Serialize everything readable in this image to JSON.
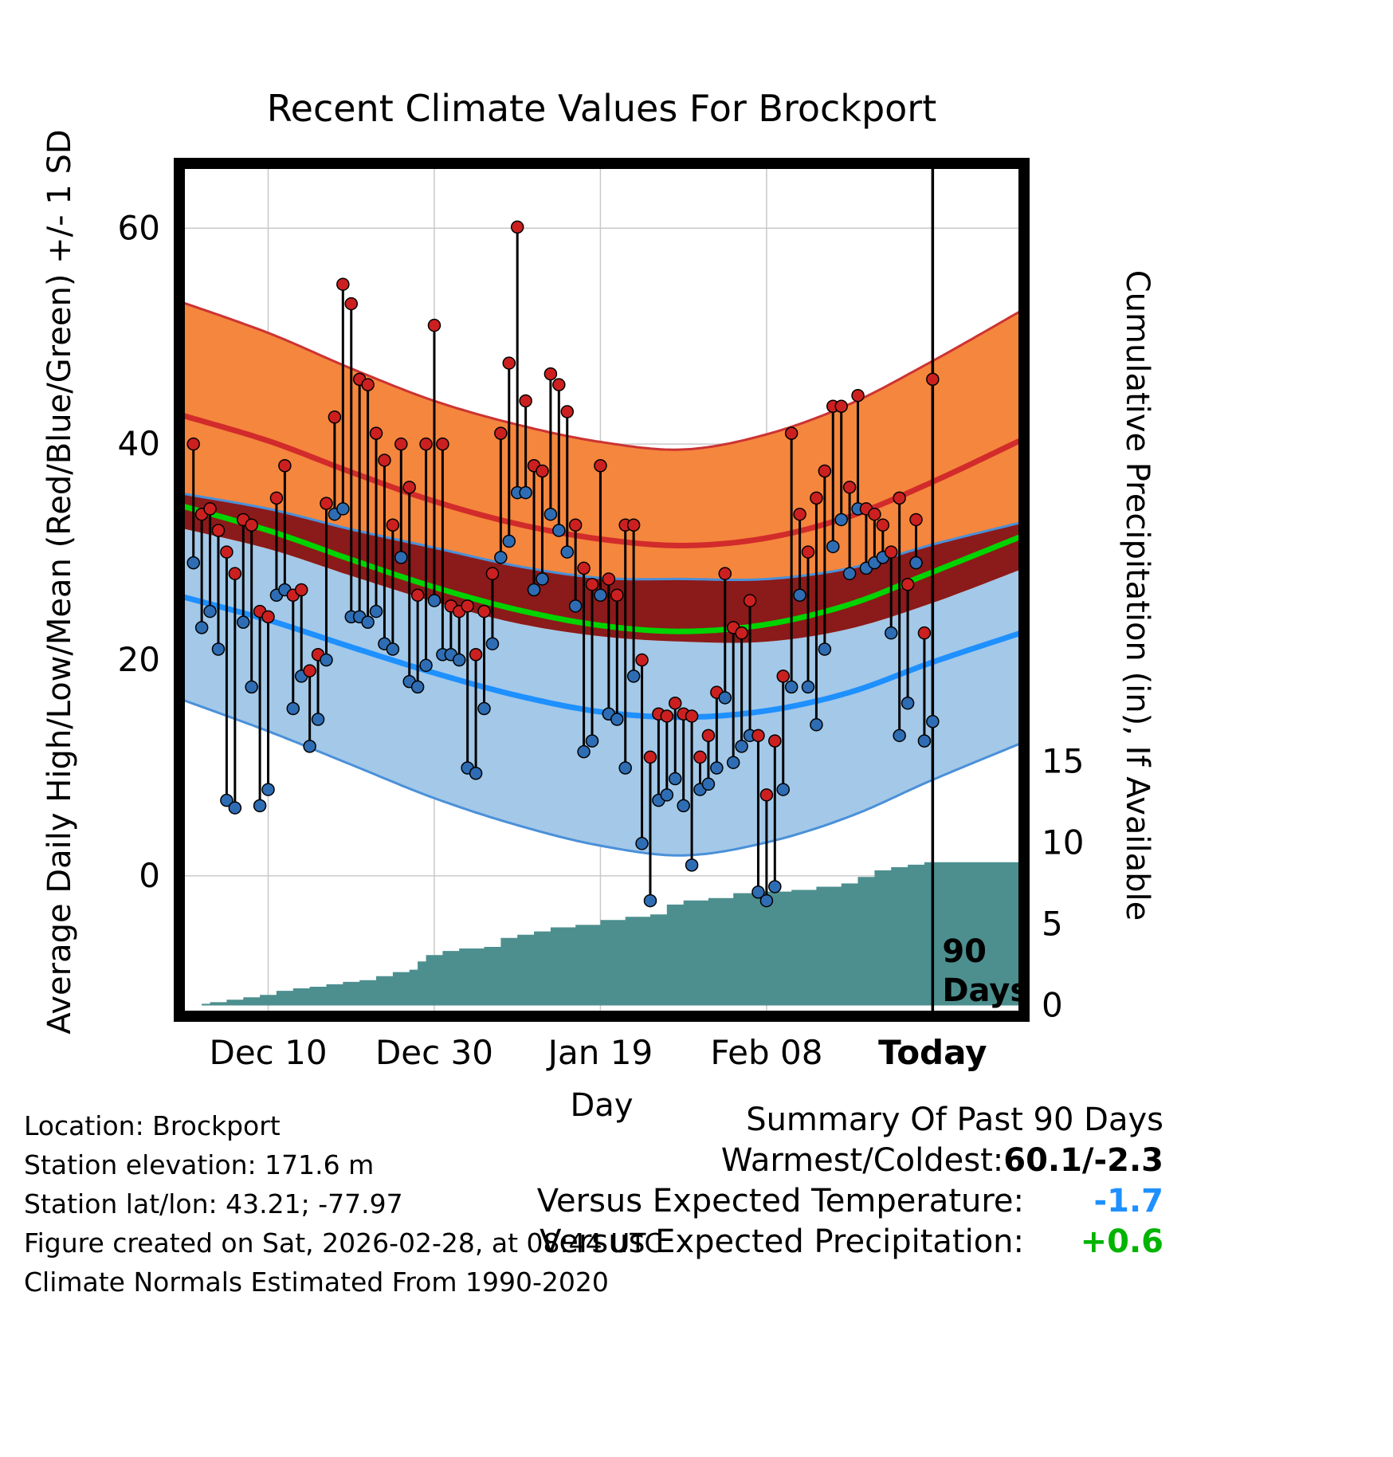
{
  "title": "Recent Climate Values For Brockport",
  "axes": {
    "left_label": "Average Daily High/Low/Mean (Red/Blue/Green) +/- 1 SD",
    "right_label": "Cumulative Precipitation (in), If Available",
    "x_label": "Day"
  },
  "annotations": {
    "ninety_days_lines": [
      "90",
      "Days"
    ]
  },
  "footer_left": [
    "Location: Brockport",
    "Station elevation: 171.6 m",
    "Station lat/lon: 43.21; -77.97",
    "Figure created on Sat, 2026-02-28, at 08:44 UTC",
    "Climate Normals Estimated From 1990-2020"
  ],
  "summary": {
    "title": "Summary Of Past 90 Days",
    "rows": [
      {
        "label": "Warmest/Coldest:",
        "value": "60.1/-2.3",
        "color": "#000000"
      },
      {
        "label": "Versus Expected Temperature:",
        "value": "-1.7",
        "color": "#1e90ff"
      },
      {
        "label": "Versus Expected Precipitation:",
        "value": "+0.6",
        "color": "#00b400"
      }
    ]
  },
  "colors": {
    "high_band": "#f5863d",
    "band_edge_red": "#cc3333",
    "high_line": "#d22b2b",
    "low_band": "#a3c8e8",
    "band_edge_blue": "#4a90d9",
    "low_line": "#1e90ff",
    "overlap_band": "#8b1a1a",
    "mean_line": "#00d400",
    "precip_fill": "#4d8f8f",
    "dot_high": "#cc2020",
    "dot_low": "#2e6db4",
    "stem": "#000000",
    "grid": "#c9c9c9",
    "frame": "#000000"
  },
  "chart_data": {
    "type": "scatter",
    "overlays": [
      "climate_normal_bands",
      "cumulative_precipitation_area"
    ],
    "title": "Recent Climate Values For Brockport",
    "xlabel": "Day",
    "ylabel_left": "Average Daily High/Low/Mean (Red/Blue/Green) +/- 1 SD",
    "ylabel_right": "Cumulative Precipitation (in), If Available",
    "x_units": "day index, 0 = 90 days before today, 90 = today",
    "xlim": [
      -0.7,
      101
    ],
    "ylim_left_degF": [
      -13,
      66
    ],
    "x_ticks": [
      {
        "day": 10,
        "label": "Dec 10",
        "bold": false
      },
      {
        "day": 30,
        "label": "Dec 30",
        "bold": false
      },
      {
        "day": 50,
        "label": "Jan 19",
        "bold": false
      },
      {
        "day": 70,
        "label": "Feb 08",
        "bold": false
      },
      {
        "day": 90,
        "label": "Today",
        "bold": true
      }
    ],
    "y_ticks_left_degF": [
      0,
      20,
      40,
      60
    ],
    "y_ticks_right_inches": [
      0,
      5,
      10,
      15
    ],
    "today_line_day": 90,
    "precip_scale": {
      "zero_at_degF": -12,
      "degF_per_inch": 1.507
    },
    "daily": {
      "day": [
        1,
        2,
        3,
        4,
        5,
        6,
        7,
        8,
        9,
        10,
        11,
        12,
        13,
        14,
        15,
        16,
        17,
        18,
        19,
        20,
        21,
        22,
        23,
        24,
        25,
        26,
        27,
        28,
        29,
        30,
        31,
        32,
        33,
        34,
        35,
        36,
        37,
        38,
        39,
        40,
        41,
        42,
        43,
        44,
        45,
        46,
        47,
        48,
        49,
        50,
        51,
        52,
        53,
        54,
        55,
        56,
        57,
        58,
        59,
        60,
        61,
        62,
        63,
        64,
        65,
        66,
        67,
        68,
        69,
        70,
        71,
        72,
        73,
        74,
        75,
        76,
        77,
        78,
        79,
        80,
        81,
        82,
        83,
        84,
        85,
        86,
        87,
        88,
        89,
        90
      ],
      "high_degF": [
        40,
        33.5,
        34,
        32,
        30,
        28,
        33,
        32.5,
        24.5,
        24,
        35,
        38,
        26,
        26.5,
        19,
        20.5,
        34.5,
        42.5,
        54.8,
        53,
        46,
        45.5,
        41,
        38.5,
        32.5,
        40,
        36,
        26,
        40,
        51,
        40,
        25,
        24.5,
        25,
        20.5,
        24.5,
        28,
        41,
        47.5,
        60.1,
        44,
        38,
        37.5,
        46.5,
        45.5,
        43,
        32.5,
        28.5,
        27,
        38,
        27.5,
        26,
        32.5,
        32.5,
        20,
        11,
        15,
        14.8,
        16,
        15,
        14.8,
        11,
        13,
        17,
        28,
        23,
        22.5,
        25.5,
        13,
        7.5,
        12.5,
        18.5,
        41,
        33.5,
        30,
        35,
        37.5,
        43.5,
        43.5,
        36,
        44.5,
        34,
        33.5,
        32.5,
        30,
        35,
        27,
        33,
        22.5,
        46
      ],
      "low_degF": [
        29,
        23,
        24.5,
        21,
        7,
        6.3,
        23.5,
        17.5,
        6.5,
        8,
        26,
        26.5,
        15.5,
        18.5,
        12,
        14.5,
        20,
        33.5,
        34,
        24,
        24,
        23.5,
        24.5,
        21.5,
        21,
        29.5,
        18,
        17.5,
        19.5,
        25.5,
        20.5,
        20.5,
        20,
        10,
        9.5,
        15.5,
        21.5,
        29.5,
        31,
        35.5,
        35.5,
        26.5,
        27.5,
        33.5,
        32,
        30,
        25,
        11.5,
        12.5,
        26,
        15,
        14.5,
        10,
        18.5,
        3,
        -2.3,
        7,
        7.5,
        9,
        6.5,
        1,
        8,
        8.5,
        10,
        16.5,
        10.5,
        12,
        13,
        -1.5,
        -2.3,
        -1,
        8,
        17.5,
        26,
        17.5,
        14,
        21,
        30.5,
        33,
        28,
        34,
        28.5,
        29,
        29.5,
        22.5,
        13,
        16,
        29,
        12.5,
        14.3
      ]
    },
    "normals_control_points": {
      "day": [
        -1,
        10,
        20,
        30,
        40,
        50,
        60,
        70,
        80,
        90,
        101
      ],
      "avg_high_degF": [
        42.8,
        40.3,
        37.4,
        34.7,
        32.6,
        31.2,
        30.6,
        31.3,
        33.3,
        36.5,
        40.5
      ],
      "avg_low_degF": [
        26.0,
        23.7,
        21.2,
        18.8,
        16.7,
        15.2,
        14.7,
        15.3,
        17.0,
        19.8,
        22.6
      ],
      "high_sd_degF": [
        10.5,
        10.0,
        9.6,
        9.3,
        9.2,
        9.0,
        8.9,
        9.6,
        10.4,
        11.2,
        12.0
      ],
      "low_sd_degF": [
        9.5,
        10.3,
        10.9,
        11.6,
        12.0,
        12.4,
        12.8,
        12.2,
        11.5,
        10.9,
        10.2
      ]
    },
    "precip_cumulative_in": {
      "day": [
        0,
        2,
        3,
        5,
        7,
        9,
        11,
        13,
        15,
        17,
        19,
        21,
        23,
        25,
        27,
        28,
        29,
        31,
        33,
        36,
        38,
        40,
        42,
        44,
        47,
        50,
        53,
        56,
        58,
        60,
        63,
        66,
        69,
        73,
        76,
        79,
        81,
        83,
        85,
        87,
        89,
        101
      ],
      "value": [
        0,
        0.1,
        0.2,
        0.35,
        0.5,
        0.65,
        0.9,
        1.05,
        1.15,
        1.3,
        1.45,
        1.55,
        1.8,
        2.05,
        2.2,
        2.7,
        3.1,
        3.35,
        3.5,
        3.6,
        4.15,
        4.35,
        4.55,
        4.8,
        4.95,
        5.25,
        5.45,
        5.6,
        6.2,
        6.45,
        6.6,
        6.9,
        7.0,
        7.1,
        7.3,
        7.5,
        7.9,
        8.3,
        8.5,
        8.65,
        8.8,
        8.8
      ]
    },
    "summary_stats": {
      "warmest_degF": 60.1,
      "coldest_degF": -2.3,
      "vs_expected_temperature_degF": -1.7,
      "vs_expected_precipitation_in": 0.6
    }
  }
}
